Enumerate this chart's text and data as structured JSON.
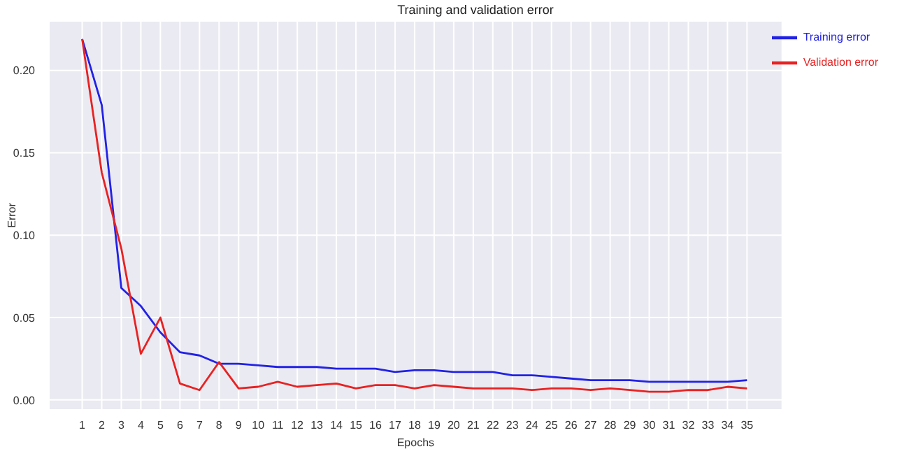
{
  "chart_data": {
    "type": "line",
    "title": "Training and validation error",
    "xlabel": "Epochs",
    "ylabel": "Error",
    "x": [
      1,
      2,
      3,
      4,
      5,
      6,
      7,
      8,
      9,
      10,
      11,
      12,
      13,
      14,
      15,
      16,
      17,
      18,
      19,
      20,
      21,
      22,
      23,
      24,
      25,
      26,
      27,
      28,
      29,
      30,
      31,
      32,
      33,
      34,
      35
    ],
    "series": [
      {
        "name": "Training error",
        "color": "#2222e6",
        "values": [
          0.219,
          0.179,
          0.068,
          0.057,
          0.041,
          0.029,
          0.027,
          0.022,
          0.022,
          0.021,
          0.02,
          0.02,
          0.02,
          0.019,
          0.019,
          0.019,
          0.017,
          0.018,
          0.018,
          0.017,
          0.017,
          0.017,
          0.015,
          0.015,
          0.014,
          0.013,
          0.012,
          0.012,
          0.012,
          0.011,
          0.011,
          0.011,
          0.011,
          0.011,
          0.012
        ]
      },
      {
        "name": "Validation error",
        "color": "#e82222",
        "values": [
          0.219,
          0.138,
          0.092,
          0.028,
          0.05,
          0.01,
          0.006,
          0.023,
          0.007,
          0.008,
          0.011,
          0.008,
          0.009,
          0.01,
          0.007,
          0.009,
          0.009,
          0.007,
          0.009,
          0.008,
          0.007,
          0.007,
          0.007,
          0.006,
          0.007,
          0.007,
          0.006,
          0.007,
          0.006,
          0.005,
          0.005,
          0.006,
          0.006,
          0.008,
          0.007
        ]
      }
    ],
    "xlim": [
      -0.7,
      36.8
    ],
    "xticks": [
      1,
      2,
      3,
      4,
      5,
      6,
      7,
      8,
      9,
      10,
      11,
      12,
      13,
      14,
      15,
      16,
      17,
      18,
      19,
      20,
      21,
      22,
      23,
      24,
      25,
      26,
      27,
      28,
      29,
      30,
      31,
      32,
      33,
      34,
      35
    ],
    "ylim": [
      -0.006,
      0.23
    ],
    "yticks": [
      {
        "value": 0,
        "label": "0.00"
      },
      {
        "value": 0.05,
        "label": "0.05"
      },
      {
        "value": 0.1,
        "label": "0.10"
      },
      {
        "value": 0.15,
        "label": "0.15"
      },
      {
        "value": 0.2,
        "label": "0.20"
      }
    ],
    "grid": true,
    "legend": "top right",
    "marker": "none",
    "line_style": "solid"
  }
}
